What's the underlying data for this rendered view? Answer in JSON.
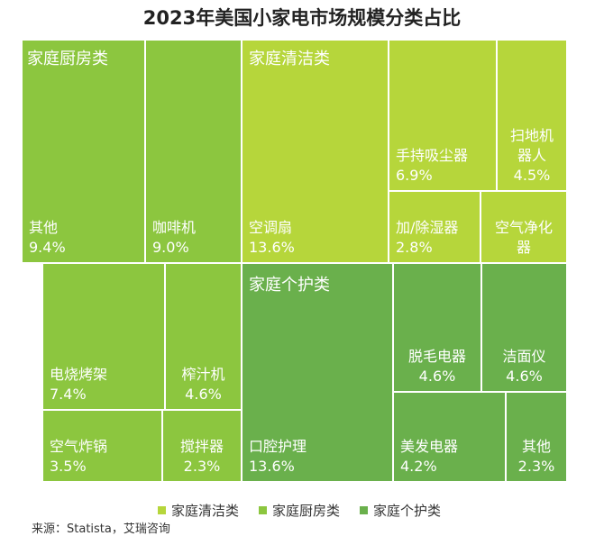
{
  "title": "2023年美国小家电市场规模分类占比",
  "source": "来源：Statista，艾瑞咨询",
  "chart_data": {
    "type": "treemap",
    "groups": [
      {
        "name": "家庭清洁类",
        "color": "#b6d63b",
        "items": [
          {
            "label": "空调扇",
            "value": 13.6,
            "text": "13.6%"
          },
          {
            "label": "手持吸尘器",
            "value": 6.9,
            "text": "6.9%"
          },
          {
            "label": "扫地机器人",
            "value": 4.5,
            "text": "4.5%"
          },
          {
            "label": "加/除湿器",
            "value": 2.8,
            "text": "2.8%"
          },
          {
            "label": "空气净化器",
            "value": null,
            "text": ""
          }
        ]
      },
      {
        "name": "家庭厨房类",
        "color": "#8cc63f",
        "items": [
          {
            "label": "其他",
            "value": 9.4,
            "text": "9.4%"
          },
          {
            "label": "咖啡机",
            "value": 9.0,
            "text": "9.0%"
          },
          {
            "label": "电烧烤架",
            "value": 7.4,
            "text": "7.4%"
          },
          {
            "label": "榨汁机",
            "value": 4.6,
            "text": "4.6%"
          },
          {
            "label": "空气炸锅",
            "value": 3.5,
            "text": "3.5%"
          },
          {
            "label": "搅拌器",
            "value": 2.3,
            "text": "2.3%"
          }
        ]
      },
      {
        "name": "家庭个护类",
        "color": "#6ab04c",
        "items": [
          {
            "label": "口腔护理",
            "value": 13.6,
            "text": "13.6%"
          },
          {
            "label": "脱毛电器",
            "value": 4.6,
            "text": "4.6%"
          },
          {
            "label": "洁面仪",
            "value": 4.6,
            "text": "4.6%"
          },
          {
            "label": "美发电器",
            "value": 4.2,
            "text": "4.2%"
          },
          {
            "label": "其他",
            "value": 2.3,
            "text": "2.3%"
          }
        ]
      }
    ],
    "legend": [
      "家庭清洁类",
      "家庭厨房类",
      "家庭个护类"
    ]
  }
}
